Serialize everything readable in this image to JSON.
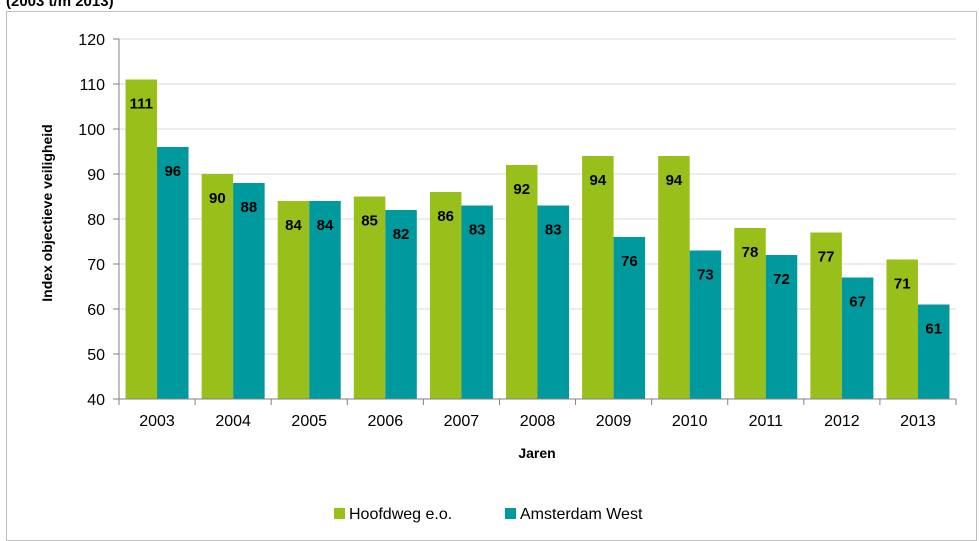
{
  "chart_data": {
    "type": "bar",
    "title": "(2003 t/m 2013)",
    "xlabel": "Jaren",
    "ylabel": "Index objectieve veiligheid",
    "ylim": [
      40,
      120
    ],
    "yticks": [
      40,
      50,
      60,
      70,
      80,
      90,
      100,
      110,
      120
    ],
    "categories": [
      "2003",
      "2004",
      "2005",
      "2006",
      "2007",
      "2008",
      "2009",
      "2010",
      "2011",
      "2012",
      "2013"
    ],
    "series": [
      {
        "name": "Hoofdweg e.o.",
        "color": "#99bf1a",
        "values": [
          111,
          90,
          84,
          85,
          86,
          92,
          94,
          94,
          78,
          77,
          71
        ],
        "labels": [
          "111",
          "90",
          "84",
          "85",
          "86",
          "92",
          "94",
          "94",
          "78",
          "77",
          "71"
        ]
      },
      {
        "name": "Amsterdam West",
        "color": "#00999e",
        "values": [
          96,
          88,
          84,
          82,
          83,
          83,
          76,
          73,
          72,
          67,
          61
        ],
        "labels": [
          "96",
          "88",
          "84",
          "82",
          "83",
          "83",
          "76",
          "73",
          "72",
          "67",
          "61"
        ]
      }
    ],
    "grid": true,
    "legend_position": "bottom"
  }
}
